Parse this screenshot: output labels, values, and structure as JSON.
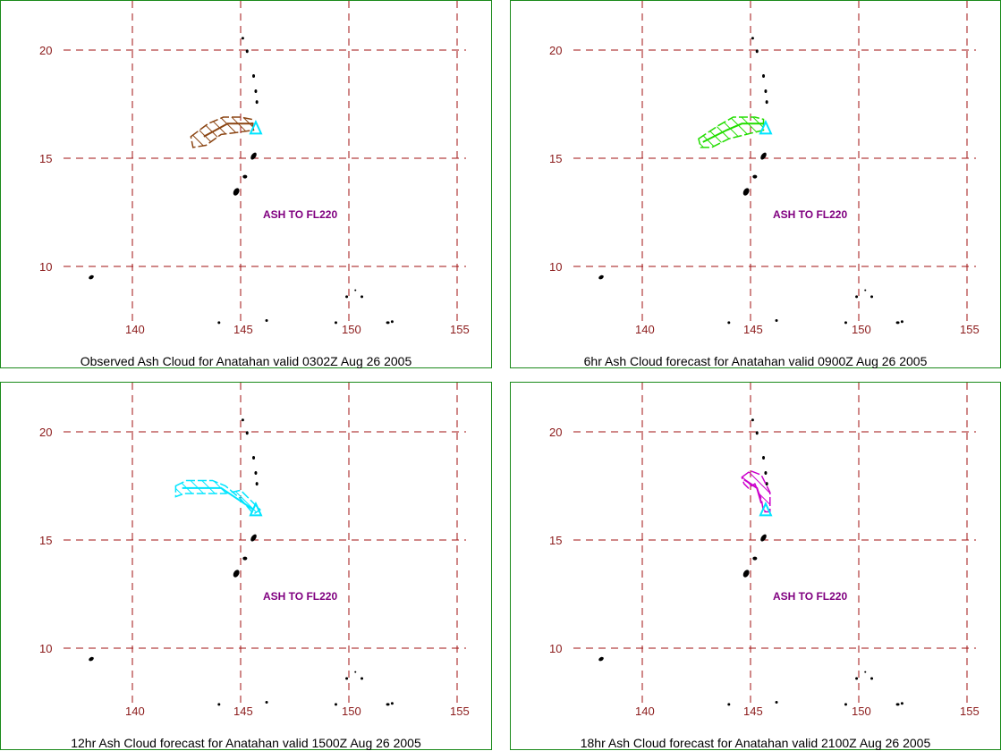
{
  "lon_ticks": [
    "140",
    "145",
    "150",
    "155"
  ],
  "lat_ticks": [
    "20",
    "15",
    "10"
  ],
  "lon_values": [
    140,
    145,
    150,
    155
  ],
  "lat_values": [
    20,
    15,
    10
  ],
  "colors": {
    "grid": "#a01010",
    "tick_label": "#8b1a1a",
    "annotation": "#800080",
    "border": "#1a8a1a",
    "volcano": "#00e5ff"
  },
  "panels": [
    {
      "caption": "Observed Ash Cloud for Anatahan valid 0302Z Aug 26 2005",
      "annotation": "ASH TO FL220",
      "cloud_color": "#8b4513",
      "cloud_shape": "observed"
    },
    {
      "caption": "6hr Ash Cloud forecast for Anatahan valid 0900Z Aug 26 2005",
      "annotation": "ASH TO FL220",
      "cloud_color": "#22dd00",
      "cloud_shape": "6hr"
    },
    {
      "caption": "12hr Ash Cloud forecast for Anatahan valid 1500Z Aug 26 2005",
      "annotation": "ASH TO FL220",
      "cloud_color": "#00e5ff",
      "cloud_shape": "12hr"
    },
    {
      "caption": "18hr Ash Cloud forecast for Anatahan valid 2100Z Aug 26 2005",
      "annotation": "ASH TO FL220",
      "cloud_color": "#cc00cc",
      "cloud_shape": "18hr"
    }
  ]
}
